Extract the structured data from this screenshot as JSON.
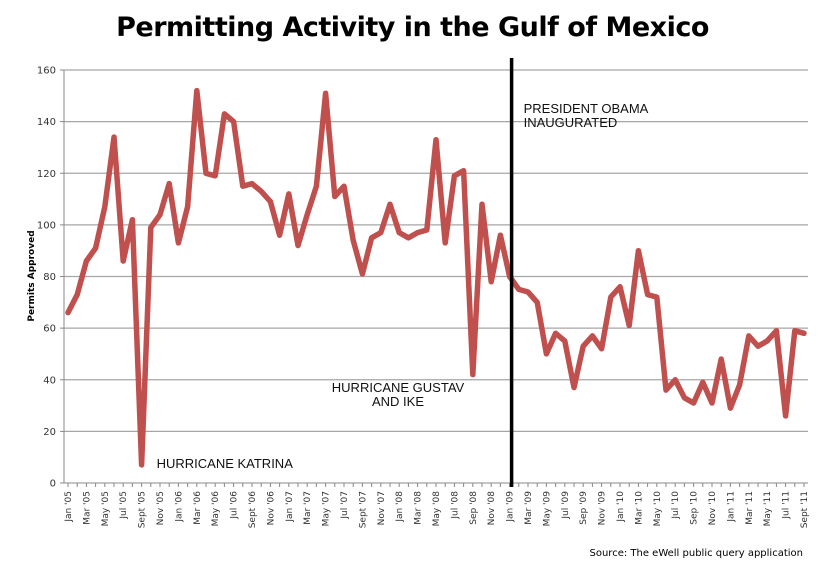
{
  "chart_data": {
    "type": "line",
    "title": "Permitting Activity in the Gulf of Mexico",
    "xlabel": "",
    "ylabel": "Permits Approved",
    "ylim": [
      0,
      160
    ],
    "yticks": [
      0,
      20,
      40,
      60,
      80,
      100,
      120,
      140,
      160
    ],
    "grid": true,
    "legend": null,
    "x_tick_labels": [
      "Jan '05",
      "Mar '05",
      "May '05",
      "Jul '05",
      "Sept '05",
      "Nov '05",
      "Jan '06",
      "Mar '06",
      "May '06",
      "Jul '06",
      "Sept '06",
      "Nov '06",
      "Jan '07",
      "Mar '07",
      "May '07",
      "Jul '07",
      "Sept '07",
      "Nov '07",
      "Jan '08",
      "Mar '08",
      "May '08",
      "Jul '08",
      "Sep '08",
      "Nov '08",
      "Jan '09",
      "Mar '09",
      "May '09",
      "Jul '09",
      "Sep '09",
      "Nov '09",
      "Jan '10",
      "Mar '10",
      "May '10",
      "Jul '10",
      "Sep '10",
      "Nov '10",
      "Jan '11",
      "Mar '11",
      "May '11",
      "Jul '11",
      "Sept '11"
    ],
    "x": [
      "Jan 2005",
      "Feb 2005",
      "Mar 2005",
      "Apr 2005",
      "May 2005",
      "Jun 2005",
      "Jul 2005",
      "Aug 2005",
      "Sep 2005",
      "Oct 2005",
      "Nov 2005",
      "Dec 2005",
      "Jan 2006",
      "Feb 2006",
      "Mar 2006",
      "Apr 2006",
      "May 2006",
      "Jun 2006",
      "Jul 2006",
      "Aug 2006",
      "Sep 2006",
      "Oct 2006",
      "Nov 2006",
      "Dec 2006",
      "Jan 2007",
      "Feb 2007",
      "Mar 2007",
      "Apr 2007",
      "May 2007",
      "Jun 2007",
      "Jul 2007",
      "Aug 2007",
      "Sep 2007",
      "Oct 2007",
      "Nov 2007",
      "Dec 2007",
      "Jan 2008",
      "Feb 2008",
      "Mar 2008",
      "Apr 2008",
      "May 2008",
      "Jun 2008",
      "Jul 2008",
      "Aug 2008",
      "Sep 2008",
      "Oct 2008",
      "Nov 2008",
      "Dec 2008",
      "Jan 2009",
      "Feb 2009",
      "Mar 2009",
      "Apr 2009",
      "May 2009",
      "Jun 2009",
      "Jul 2009",
      "Aug 2009",
      "Sep 2009",
      "Oct 2009",
      "Nov 2009",
      "Dec 2009",
      "Jan 2010",
      "Feb 2010",
      "Mar 2010",
      "Apr 2010",
      "May 2010",
      "Jun 2010",
      "Jul 2010",
      "Aug 2010",
      "Sep 2010",
      "Oct 2010",
      "Nov 2010",
      "Dec 2010",
      "Jan 2011",
      "Feb 2011",
      "Mar 2011",
      "Apr 2011",
      "May 2011",
      "Jun 2011",
      "Jul 2011",
      "Aug 2011",
      "Sep 2011"
    ],
    "series": [
      {
        "name": "Permits Approved",
        "color": "#c0504d",
        "values": [
          66,
          73,
          86,
          91,
          107,
          134,
          86,
          102,
          7,
          99,
          104,
          116,
          93,
          107,
          152,
          120,
          119,
          143,
          140,
          115,
          116,
          113,
          109,
          96,
          112,
          92,
          104,
          115,
          151,
          111,
          115,
          94,
          81,
          95,
          97,
          108,
          97,
          95,
          97,
          98,
          133,
          93,
          119,
          121,
          42,
          108,
          78,
          96,
          80,
          75,
          74,
          70,
          50,
          58,
          55,
          37,
          53,
          57,
          52,
          72,
          76,
          61,
          90,
          73,
          72,
          36,
          40,
          33,
          31,
          39,
          31,
          48,
          29,
          38,
          57,
          53,
          55,
          59,
          26,
          59,
          58
        ]
      }
    ],
    "annotations": [
      {
        "text": "HURRICANE KATRINA",
        "x": "Sep 2005",
        "y": 7
      },
      {
        "text_lines": [
          "HURRICANE GUSTAV",
          "AND IKE"
        ],
        "x": "Sep 2008",
        "y": 42
      },
      {
        "text_lines": [
          "PRESIDENT OBAMA",
          "INAUGURATED"
        ],
        "x": "Jan 2009",
        "y": 145
      }
    ],
    "vertical_marker": {
      "x": "Jan 2009",
      "color": "#000000",
      "label": "President Obama inaugurated"
    },
    "source": "Source: The eWell public query application"
  }
}
